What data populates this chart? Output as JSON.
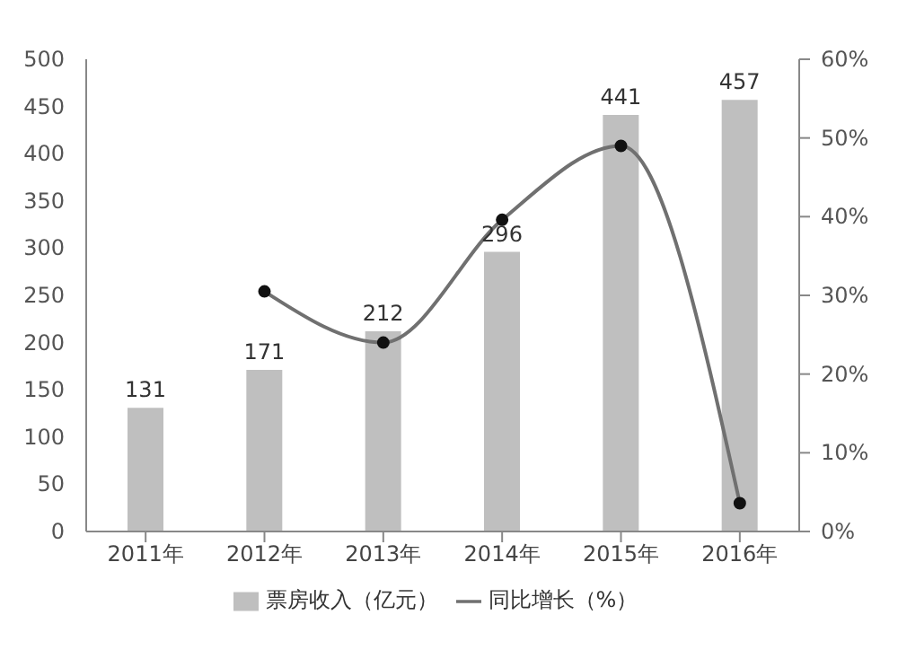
{
  "chart_data": {
    "type": "bar",
    "categories": [
      "2011年",
      "2012年",
      "2013年",
      "2014年",
      "2015年",
      "2016年"
    ],
    "series": [
      {
        "name": "票房收入（亿元）",
        "color": "#bfbfbf",
        "values": [
          131,
          171,
          212,
          296,
          441,
          457
        ],
        "value_labels": [
          "131",
          "171",
          "212",
          "296",
          "441",
          "457"
        ]
      },
      {
        "name": "同比增长（%）",
        "type": "line",
        "axis": "y2",
        "color": "#707070",
        "values": [
          null,
          30.5,
          24,
          39.6,
          49,
          3.6
        ]
      }
    ],
    "ylim": [
      0,
      500
    ],
    "yticks": [
      0,
      50,
      100,
      150,
      200,
      250,
      300,
      350,
      400,
      450,
      500
    ],
    "y2lim": [
      0,
      60
    ],
    "y2ticks": [
      {
        "value": 0,
        "label": "0%"
      },
      {
        "value": 10,
        "label": "10%"
      },
      {
        "value": 20,
        "label": "20%"
      },
      {
        "value": 30,
        "label": "30%"
      },
      {
        "value": 40,
        "label": "40%"
      },
      {
        "value": 50,
        "label": "50%"
      },
      {
        "value": 60,
        "label": "60%"
      }
    ],
    "grid": false,
    "legend": "bottom",
    "marker": "circle",
    "line_style": "solid"
  }
}
